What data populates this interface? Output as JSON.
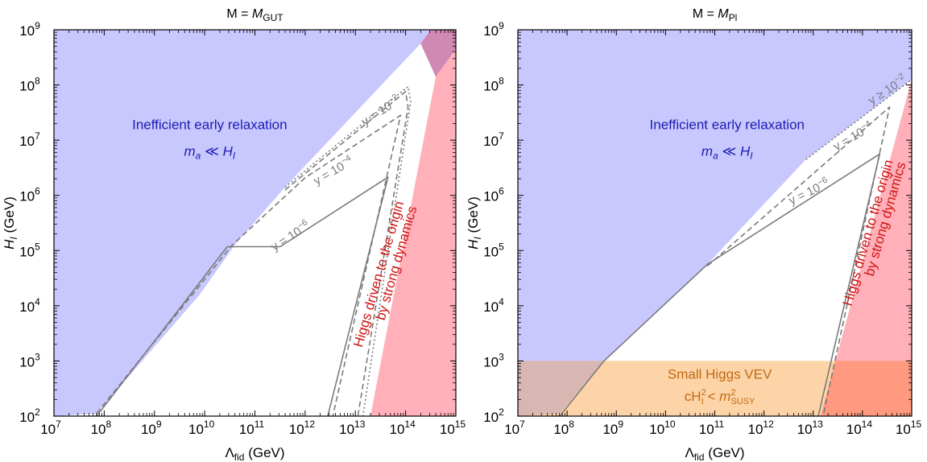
{
  "colors": {
    "inefficient": "#c8c8ff",
    "higgs": "#ffb0b8",
    "overlap": "#d088b4",
    "vev": "#fdd4a8",
    "vev_inefficient": "#d8b6b2",
    "vev_higgs": "#ff9a80",
    "inefficient_text": "#1c1cb0",
    "higgs_text": "#d21414",
    "vev_text": "#c06a10",
    "curve": "#7a7a7a"
  },
  "chart_data": [
    {
      "type": "area",
      "title": "M = M_GUT",
      "title_prefix": "M = ",
      "title_main": "M",
      "title_sub": "GUT",
      "xlabel_main": "Λ",
      "xlabel_sub": "fid",
      "xlabel_unit": " (GeV)",
      "ylabel_main": "H",
      "ylabel_sub": "I",
      "ylabel_unit": " (GeV)",
      "x_scale": "log",
      "y_scale": "log",
      "xlim_exp": [
        7,
        15
      ],
      "ylim_exp": [
        2,
        9
      ],
      "x_ticks": [
        7,
        8,
        9,
        10,
        11,
        12,
        13,
        14,
        15
      ],
      "y_ticks": [
        2,
        3,
        4,
        5,
        6,
        7,
        8,
        9
      ],
      "tick_base": "10",
      "regions": [
        {
          "name": "inefficient-region",
          "color_key": "inefficient",
          "points": [
            [
              7,
              2
            ],
            [
              7.85,
              2.05
            ],
            [
              9.9,
              4.2
            ],
            [
              10.6,
              5.1
            ],
            [
              11.6,
              6.15
            ],
            [
              14.3,
              8.75
            ],
            [
              14.5,
              9
            ],
            [
              7,
              9
            ]
          ]
        },
        {
          "name": "higgs-region",
          "color_key": "higgs",
          "points": [
            [
              13.3,
              2
            ],
            [
              14.6,
              8.15
            ],
            [
              15,
              8.65
            ],
            [
              15,
              2
            ]
          ]
        },
        {
          "name": "overlap-region",
          "color_key": "overlap",
          "points": [
            [
              14.3,
              8.75
            ],
            [
              14.5,
              9
            ],
            [
              15,
              9
            ],
            [
              15,
              8.65
            ],
            [
              14.6,
              8.15
            ]
          ]
        }
      ],
      "curves": [
        {
          "label": "y = 10^-6",
          "style": "solid",
          "points": [
            [
              7.85,
              2
            ],
            [
              10.45,
              5.07
            ],
            [
              10.7,
              5.07
            ],
            [
              11.5,
              5.07
            ],
            [
              13.65,
              6.33
            ],
            [
              12.45,
              2
            ]
          ]
        },
        {
          "label": "y = 10^-4",
          "style": "dashed",
          "points": [
            [
              7.85,
              2.05
            ],
            [
              10.55,
              5.1
            ],
            [
              12.0,
              6.32
            ],
            [
              13.9,
              7.45
            ],
            [
              12.55,
              2
            ]
          ]
        },
        {
          "label": "y = 10^-2",
          "style": "dotted",
          "points": [
            [
              11.6,
              6.15
            ],
            [
              14.05,
              7.97
            ],
            [
              14.1,
              7.7
            ],
            [
              13.15,
              2
            ]
          ]
        },
        {
          "label": "y = 10^-2",
          "style": "dashed",
          "points": [
            [
              11.6,
              6.1
            ],
            [
              14.0,
              7.88
            ],
            [
              14.05,
              7.6
            ],
            [
              13.05,
              2
            ]
          ]
        }
      ],
      "curve_labels": [
        {
          "text": "y = 10",
          "sup": "−6",
          "x": 11.75,
          "y": 5.2,
          "angle": -33
        },
        {
          "text": "y = 10",
          "sup": "−4",
          "x": 12.6,
          "y": 6.38,
          "angle": -30
        },
        {
          "text": "y = 10",
          "sup": "−2",
          "x": 13.55,
          "y": 7.47,
          "angle": -33
        }
      ],
      "annotations": [
        {
          "role": "inefficient-title",
          "text": "Inefficient early relaxation",
          "x": 10.1,
          "y": 7.2,
          "color_key": "inefficient_text"
        },
        {
          "role": "inefficient-sub",
          "text": "m_a ≪ H_I",
          "main": "m",
          "sub": "a",
          "rel": " ≪ ",
          "main2": "H",
          "sub2": "I",
          "x": 10.1,
          "y": 6.72,
          "color_key": "inefficient_text"
        },
        {
          "role": "higgs-line-1",
          "text": "Higgs driven to the origin",
          "x": 13.55,
          "y": 4.55,
          "angle": -74,
          "color_key": "higgs_text"
        },
        {
          "role": "higgs-line-2",
          "text": "by strong dynamics",
          "x": 13.9,
          "y": 4.75,
          "angle": -74,
          "color_key": "higgs_text"
        }
      ]
    },
    {
      "type": "area",
      "title": "M = M_Pl",
      "title_prefix": "M = ",
      "title_main": "M",
      "title_sub": "Pl",
      "xlabel_main": "Λ",
      "xlabel_sub": "fid",
      "xlabel_unit": " (GeV)",
      "ylabel_main": "H",
      "ylabel_sub": "I",
      "ylabel_unit": " (GeV)",
      "x_scale": "log",
      "y_scale": "log",
      "xlim_exp": [
        7,
        15
      ],
      "ylim_exp": [
        2,
        9
      ],
      "x_ticks": [
        7,
        8,
        9,
        10,
        11,
        12,
        13,
        14,
        15
      ],
      "y_ticks": [
        2,
        3,
        4,
        5,
        6,
        7,
        8,
        9
      ],
      "tick_base": "10",
      "regions": [
        {
          "name": "inefficient-region",
          "color_key": "inefficient",
          "points": [
            [
              7,
              2
            ],
            [
              7.85,
              2.05
            ],
            [
              8.75,
              3
            ],
            [
              10.85,
              4.75
            ],
            [
              12.85,
              6.65
            ],
            [
              15,
              8.1
            ],
            [
              15,
              9
            ],
            [
              7,
              9
            ]
          ]
        },
        {
          "name": "vev-region",
          "color_key": "vev",
          "points": [
            [
              7,
              2
            ],
            [
              15,
              2
            ],
            [
              15,
              3
            ],
            [
              7,
              3
            ]
          ]
        },
        {
          "name": "vev-inefficient-overlap",
          "color_key": "vev_inefficient",
          "points": [
            [
              7,
              2
            ],
            [
              7.85,
              2.05
            ],
            [
              8.75,
              3
            ],
            [
              7,
              3
            ]
          ]
        },
        {
          "name": "higgs-region",
          "color_key": "higgs",
          "points": [
            [
              13.15,
              2
            ],
            [
              15,
              8.1
            ],
            [
              15,
              2
            ]
          ]
        },
        {
          "name": "vev-higgs-overlap",
          "color_key": "vev_higgs",
          "points": [
            [
              13.15,
              2
            ],
            [
              13.45,
              3
            ],
            [
              15,
              3
            ],
            [
              15,
              2
            ]
          ]
        }
      ],
      "curves": [
        {
          "label": "y = 10^-6",
          "style": "solid",
          "points": [
            [
              7.85,
              2
            ],
            [
              8.75,
              3
            ],
            [
              10.85,
              4.75
            ],
            [
              14.35,
              6.75
            ],
            [
              13.1,
              2
            ]
          ]
        },
        {
          "label": "y = 10^-4",
          "style": "dashed",
          "points": [
            [
              10.85,
              4.72
            ],
            [
              14.55,
              7.6
            ],
            [
              13.2,
              2
            ]
          ]
        },
        {
          "label": "y ≥ 10^-2",
          "style": "dotted",
          "points": [
            [
              12.85,
              6.65
            ],
            [
              15,
              8.1
            ]
          ]
        }
      ],
      "curve_labels": [
        {
          "text": "y = 10",
          "sup": "−6",
          "x": 12.95,
          "y": 6.0,
          "angle": -26
        },
        {
          "text": "y = 10",
          "sup": "−4",
          "x": 13.85,
          "y": 7.0,
          "angle": -30
        },
        {
          "text": "y ≥ 10",
          "sup": "−2",
          "x": 14.55,
          "y": 7.85,
          "angle": -33
        }
      ],
      "annotations": [
        {
          "role": "inefficient-title",
          "text": "Inefficient early relaxation",
          "x": 11.25,
          "y": 7.2,
          "color_key": "inefficient_text"
        },
        {
          "role": "inefficient-sub",
          "text": "m_a ≪ H_I",
          "main": "m",
          "sub": "a",
          "rel": " ≪ ",
          "main2": "H",
          "sub2": "I",
          "x": 11.25,
          "y": 6.72,
          "color_key": "inefficient_text"
        },
        {
          "role": "higgs-line-1",
          "text": "Higgs driven to the origin",
          "x": 14.2,
          "y": 5.3,
          "angle": -74,
          "color_key": "higgs_text"
        },
        {
          "role": "higgs-line-2",
          "text": "by strong dynamics",
          "x": 14.55,
          "y": 5.55,
          "angle": -74,
          "color_key": "higgs_text"
        },
        {
          "role": "vev-title",
          "text": "Small Higgs VEV",
          "x": 11.1,
          "y": 2.68,
          "color_key": "vev_text"
        },
        {
          "role": "vev-sub",
          "text": "cH_I^2 < m_SUSY^2",
          "x": 11.1,
          "y": 2.28,
          "color_key": "vev_text"
        }
      ]
    }
  ]
}
